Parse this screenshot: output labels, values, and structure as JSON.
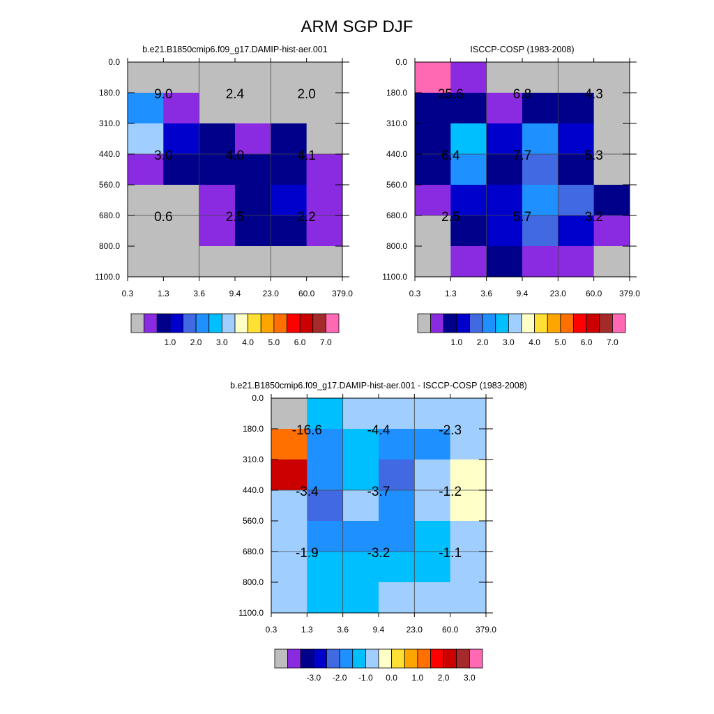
{
  "figure": {
    "title": "ARM SGP DJF"
  },
  "colors": {
    "grey": "#BEBEBE",
    "purple": "#8A2BE2",
    "navy": "#00008B",
    "blue": "#0000CD",
    "royal": "#4169E1",
    "dodger": "#1E90FF",
    "deepsky": "#00BFFF",
    "lightsky": "#A0CFFF",
    "cream": "#FFFFC8",
    "gold": "#FFE033",
    "orange": "#FFA500",
    "darkorange": "#FF7000",
    "red": "#FF0000",
    "crimson": "#CC0000",
    "brown": "#A52A2A",
    "pink": "#FF69B4"
  },
  "colorbar_colors": [
    "grey",
    "purple",
    "navy",
    "blue",
    "royal",
    "dodger",
    "deepsky",
    "lightsky",
    "cream",
    "gold",
    "orange",
    "darkorange",
    "red",
    "crimson",
    "brown",
    "pink"
  ],
  "chart_data": [
    {
      "type": "heatmap",
      "title": "b.e21.B1850cmip6.f09_g17.DAMIP-hist-aer.001",
      "x_ticks": [
        "0.3",
        "1.3",
        "3.6",
        "9.4",
        "23.0",
        "60.0",
        "379.0"
      ],
      "y_ticks": [
        "0.0",
        "180.0",
        "310.0",
        "440.0",
        "560.0",
        "680.0",
        "800.0",
        "1100.0"
      ],
      "cell_colors": [
        [
          "grey",
          "grey",
          "grey",
          "grey",
          "grey",
          "grey"
        ],
        [
          "dodger",
          "purple",
          "grey",
          "grey",
          "grey",
          "grey"
        ],
        [
          "lightsky",
          "blue",
          "navy",
          "purple",
          "navy",
          "grey"
        ],
        [
          "purple",
          "navy",
          "navy",
          "navy",
          "navy",
          "purple"
        ],
        [
          "grey",
          "grey",
          "purple",
          "navy",
          "blue",
          "purple"
        ],
        [
          "grey",
          "grey",
          "purple",
          "navy",
          "navy",
          "purple"
        ],
        [
          "grey",
          "grey",
          "grey",
          "grey",
          "grey",
          "grey"
        ]
      ],
      "annotations": [
        [
          "9.0",
          "2.4",
          "2.0"
        ],
        [
          "3.0",
          "4.0",
          "4.1"
        ],
        [
          "0.6",
          "2.5",
          "2.2"
        ]
      ],
      "colorbar_labels": [
        "1.0",
        "2.0",
        "3.0",
        "4.0",
        "5.0",
        "6.0",
        "7.0"
      ]
    },
    {
      "type": "heatmap",
      "title": "ISCCP-COSP (1983-2008)",
      "x_ticks": [
        "0.3",
        "1.3",
        "3.6",
        "9.4",
        "23.0",
        "60.0",
        "379.0"
      ],
      "y_ticks": [
        "0.0",
        "180.0",
        "310.0",
        "440.0",
        "560.0",
        "680.0",
        "800.0",
        "1100.0"
      ],
      "cell_colors": [
        [
          "pink",
          "purple",
          "grey",
          "grey",
          "grey",
          "grey"
        ],
        [
          "navy",
          "navy",
          "purple",
          "navy",
          "navy",
          "grey"
        ],
        [
          "navy",
          "deepsky",
          "blue",
          "dodger",
          "blue",
          "grey"
        ],
        [
          "navy",
          "dodger",
          "navy",
          "royal",
          "navy",
          "grey"
        ],
        [
          "purple",
          "blue",
          "blue",
          "dodger",
          "royal",
          "navy"
        ],
        [
          "grey",
          "navy",
          "blue",
          "royal",
          "blue",
          "purple"
        ],
        [
          "grey",
          "purple",
          "navy",
          "purple",
          "purple",
          "grey"
        ]
      ],
      "annotations": [
        [
          "25.6",
          "6.8",
          "4.3"
        ],
        [
          "6.4",
          "7.7",
          "5.3"
        ],
        [
          "2.5",
          "5.7",
          "3.2"
        ]
      ],
      "colorbar_labels": [
        "1.0",
        "2.0",
        "3.0",
        "4.0",
        "5.0",
        "6.0",
        "7.0"
      ]
    },
    {
      "type": "heatmap",
      "title": "b.e21.B1850cmip6.f09_g17.DAMIP-hist-aer.001 - ISCCP-COSP (1983-2008)",
      "x_ticks": [
        "0.3",
        "1.3",
        "3.6",
        "9.4",
        "23.0",
        "60.0",
        "379.0"
      ],
      "y_ticks": [
        "0.0",
        "180.0",
        "310.0",
        "440.0",
        "560.0",
        "680.0",
        "800.0",
        "1100.0"
      ],
      "cell_colors": [
        [
          "grey",
          "deepsky",
          "lightsky",
          "lightsky",
          "lightsky",
          "lightsky"
        ],
        [
          "darkorange",
          "dodger",
          "deepsky",
          "dodger",
          "dodger",
          "lightsky"
        ],
        [
          "crimson",
          "dodger",
          "deepsky",
          "royal",
          "lightsky",
          "cream"
        ],
        [
          "lightsky",
          "royal",
          "lightsky",
          "dodger",
          "lightsky",
          "cream"
        ],
        [
          "lightsky",
          "dodger",
          "dodger",
          "dodger",
          "deepsky",
          "lightsky"
        ],
        [
          "lightsky",
          "deepsky",
          "deepsky",
          "deepsky",
          "deepsky",
          "lightsky"
        ],
        [
          "lightsky",
          "deepsky",
          "deepsky",
          "lightsky",
          "lightsky",
          "lightsky"
        ]
      ],
      "annotations": [
        [
          "-16.6",
          "-4.4",
          "-2.3"
        ],
        [
          "-3.4",
          "-3.7",
          "-1.2"
        ],
        [
          "-1.9",
          "-3.2",
          "-1.1"
        ]
      ],
      "colorbar_labels": [
        "-3.0",
        "-2.0",
        "-1.0",
        "0.0",
        "1.0",
        "2.0",
        "3.0"
      ]
    }
  ]
}
